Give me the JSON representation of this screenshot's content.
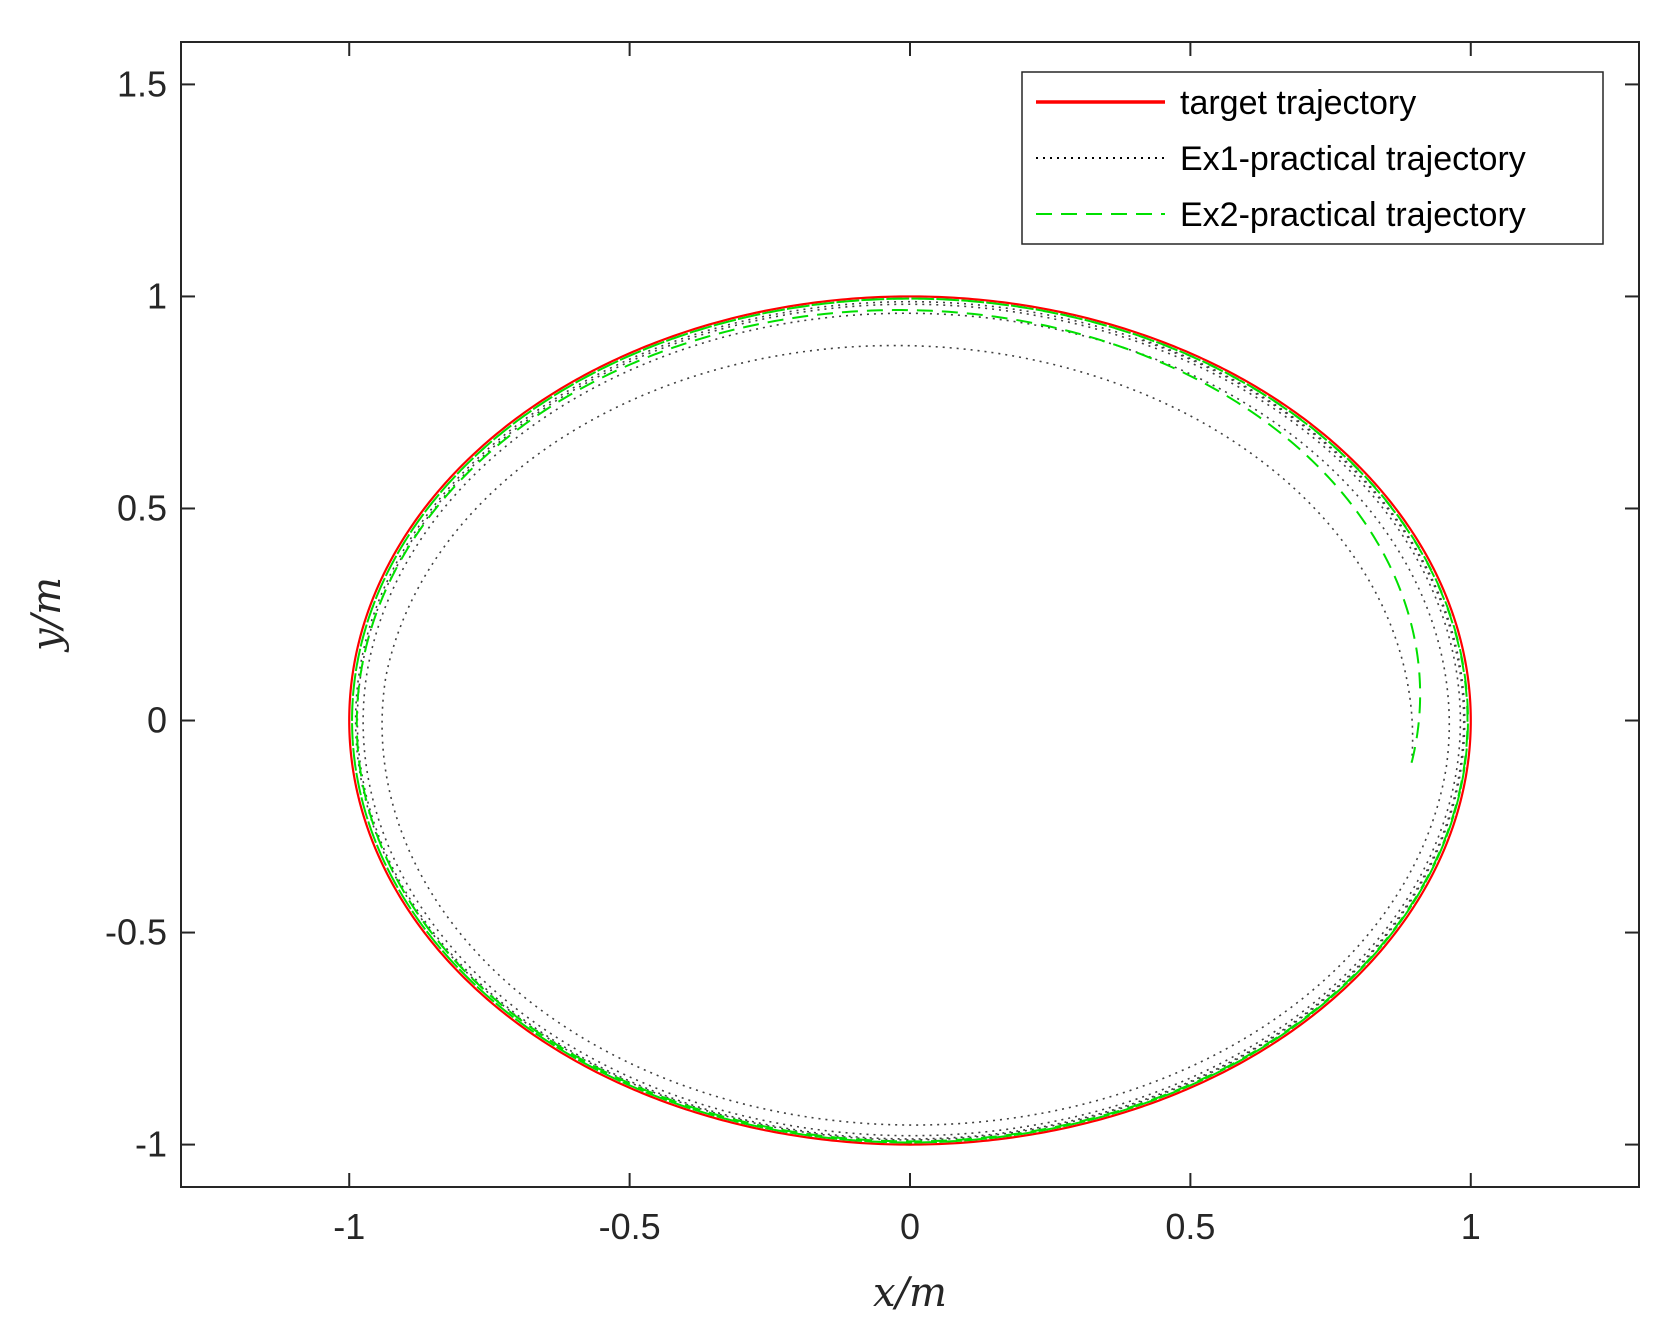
{
  "chart_data": {
    "type": "line",
    "title": "",
    "xlabel": "x/m",
    "ylabel": "y/m",
    "xlim": [
      -1.3,
      1.3
    ],
    "ylim": [
      -1.1,
      1.6
    ],
    "xticks": [
      "-1",
      "-0.5",
      "0",
      "0.5",
      "1"
    ],
    "yticks": [
      "-1",
      "-0.5",
      "0",
      "0.5",
      "1",
      "1.5"
    ],
    "xtick_values": [
      -1,
      -0.5,
      0,
      0.5,
      1
    ],
    "ytick_values": [
      -1,
      -0.5,
      0,
      0.5,
      1,
      1.5
    ],
    "grid": false,
    "legend_position": "top-right",
    "series": [
      {
        "name": "target trajectory",
        "style": "solid",
        "color": "#ff0000",
        "shape": "unit circle centered at origin, radius 1"
      },
      {
        "name": "Ex1-practical trajectory",
        "style": "dotted",
        "color": "#000000",
        "shape": "spiral starting near (0.9, -0.1), converging onto the unit circle",
        "start": [
          0.9,
          -0.1
        ],
        "start_radius": 0.9,
        "final_radius": 0.99
      },
      {
        "name": "Ex2-practical trajectory",
        "style": "dashed",
        "color": "#00e000",
        "shape": "starts near (0.9, -0.1), converges quickly onto the unit circle",
        "start": [
          0.9,
          -0.1
        ],
        "start_radius": 0.9,
        "final_radius": 0.995
      }
    ]
  }
}
